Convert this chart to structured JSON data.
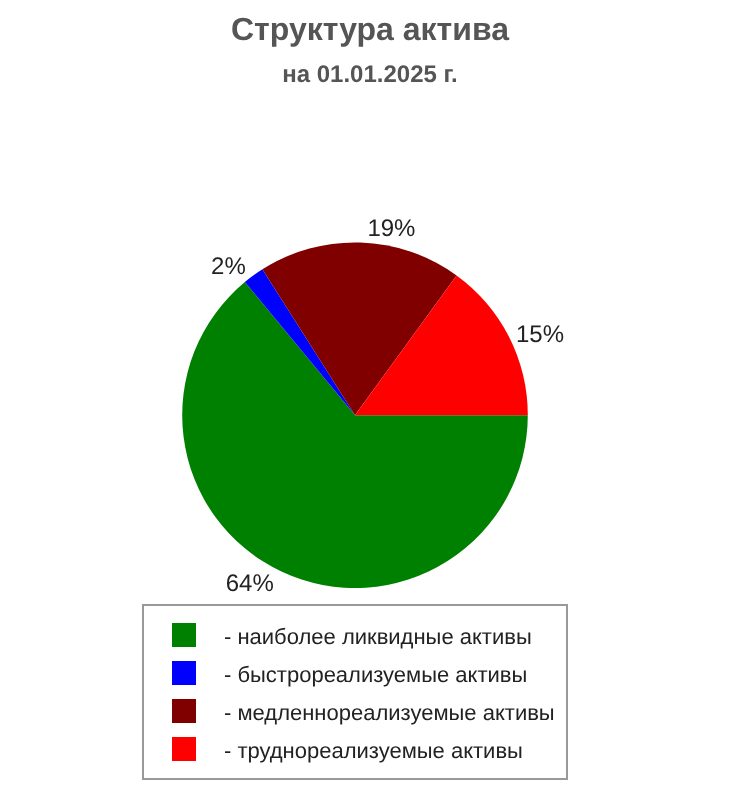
{
  "chart_data": {
    "type": "pie",
    "title": "Структура актива",
    "subtitle": "на 01.01.2025 г.",
    "categories": [
      "- наиболее ликвидные активы",
      "- быстрореализуемые активы",
      "- медленнореализуемые активы",
      "- труднореализуемые активы"
    ],
    "values": [
      64,
      2,
      19,
      15
    ],
    "colors": [
      "#008000",
      "#0000ff",
      "#800000",
      "#ff0000"
    ],
    "value_labels": [
      "64%",
      "2%",
      "19%",
      "15%"
    ],
    "legend": "bottom"
  }
}
